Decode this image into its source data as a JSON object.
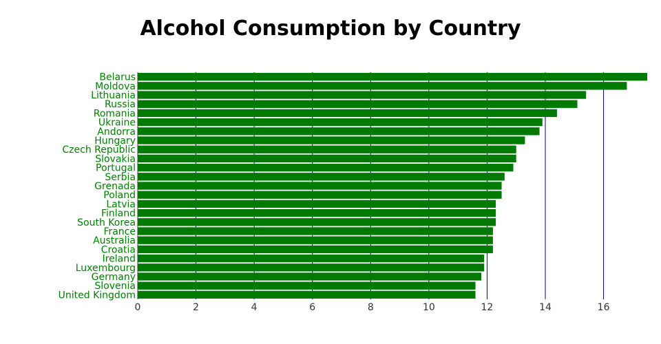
{
  "chart_data": {
    "type": "bar",
    "orientation": "horizontal",
    "title": "Alcohol Consumption by Country",
    "xlabel": "",
    "ylabel": "",
    "categories": [
      "Belarus",
      "Moldova",
      "Lithuania",
      "Russia",
      "Romania",
      "Ukraine",
      "Andorra",
      "Hungary",
      "Czech Republic",
      "Slovakia",
      "Portugal",
      "Serbia",
      "Grenada",
      "Poland",
      "Latvia",
      "Finland",
      "South Korea",
      "France",
      "Australia",
      "Croatia",
      "Ireland",
      "Luxembourg",
      "Germany",
      "Slovenia",
      "United Kingdom"
    ],
    "values": [
      17.5,
      16.8,
      15.4,
      15.1,
      14.4,
      13.9,
      13.8,
      13.3,
      13.0,
      13.0,
      12.9,
      12.6,
      12.5,
      12.5,
      12.3,
      12.3,
      12.3,
      12.2,
      12.2,
      12.2,
      11.9,
      11.9,
      11.8,
      11.6,
      11.6
    ],
    "xlim": [
      0,
      17.5
    ],
    "x_ticks": [
      "0",
      "2",
      "4",
      "6",
      "8",
      "10",
      "12",
      "14",
      "16"
    ],
    "grid": "vertical",
    "legend": "none",
    "colors": {
      "bar": "#007a00",
      "label": "#008000",
      "grid": "#000080"
    }
  }
}
